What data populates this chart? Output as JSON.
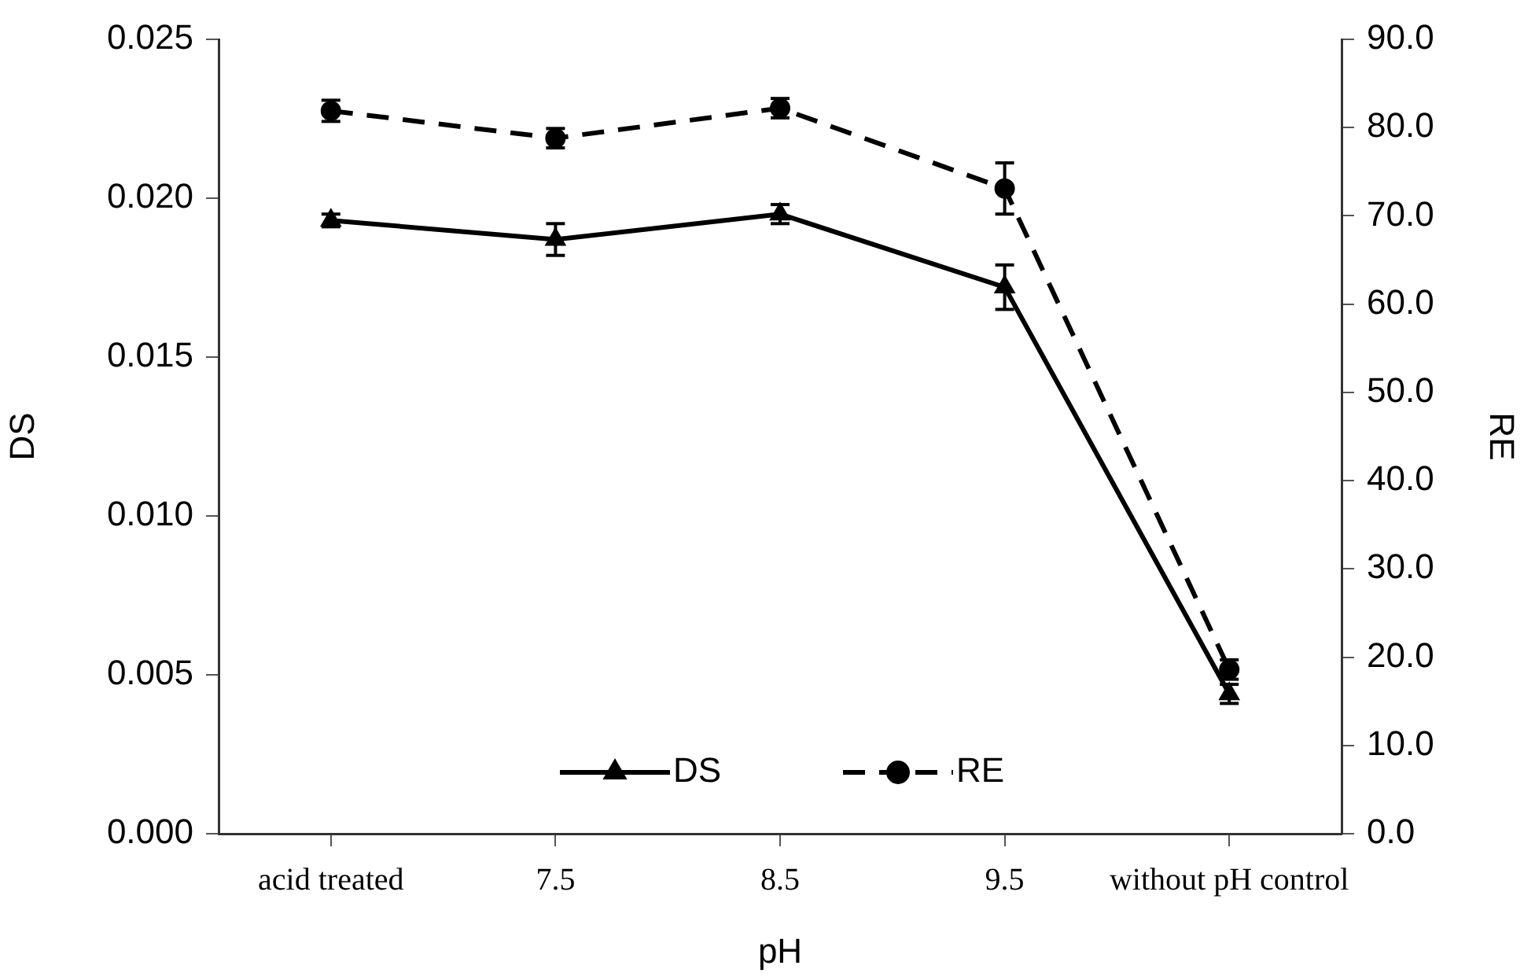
{
  "chart_data": {
    "type": "line",
    "xlabel": "pH",
    "ylabel": "DS",
    "y2label": "RE",
    "categories": [
      "acid treated",
      "7.5",
      "8.5",
      "9.5",
      "without pH control"
    ],
    "series": [
      {
        "name": "DS",
        "color": "#000000",
        "marker": "triangle",
        "line_style": "solid",
        "values": [
          0.0193,
          0.0187,
          0.0195,
          0.0172,
          0.0044
        ],
        "errors": [
          0.0002,
          0.0005,
          0.0003,
          0.0007,
          0.0003
        ]
      },
      {
        "name": "RE",
        "color": "#000000",
        "marker": "circle",
        "line_style": "dashed",
        "axis": "y2",
        "values": [
          81.9,
          78.8,
          82.2,
          73.1,
          18.6
        ],
        "errors": [
          1.2,
          1.1,
          1.1,
          2.9,
          1.1
        ]
      }
    ],
    "ylim": [
      0,
      0.025
    ],
    "yticks": [
      {
        "value": 0,
        "label": "0.000"
      },
      {
        "value": 0.005,
        "label": "0.005"
      },
      {
        "value": 0.01,
        "label": "0.010"
      },
      {
        "value": 0.015,
        "label": "0.015"
      },
      {
        "value": 0.02,
        "label": "0.020"
      },
      {
        "value": 0.025,
        "label": "0.025"
      }
    ],
    "y2lim": [
      0,
      90
    ],
    "y2ticks": [
      {
        "value": 0,
        "label": "0.0"
      },
      {
        "value": 10,
        "label": "10.0"
      },
      {
        "value": 20,
        "label": "20.0"
      },
      {
        "value": 30,
        "label": "30.0"
      },
      {
        "value": 40,
        "label": "40.0"
      },
      {
        "value": 50,
        "label": "50.0"
      },
      {
        "value": 60,
        "label": "60.0"
      },
      {
        "value": 70,
        "label": "70.0"
      },
      {
        "value": 80,
        "label": "80.0"
      },
      {
        "value": 90,
        "label": "90.0"
      }
    ],
    "grid": false,
    "legend": "bottom"
  }
}
